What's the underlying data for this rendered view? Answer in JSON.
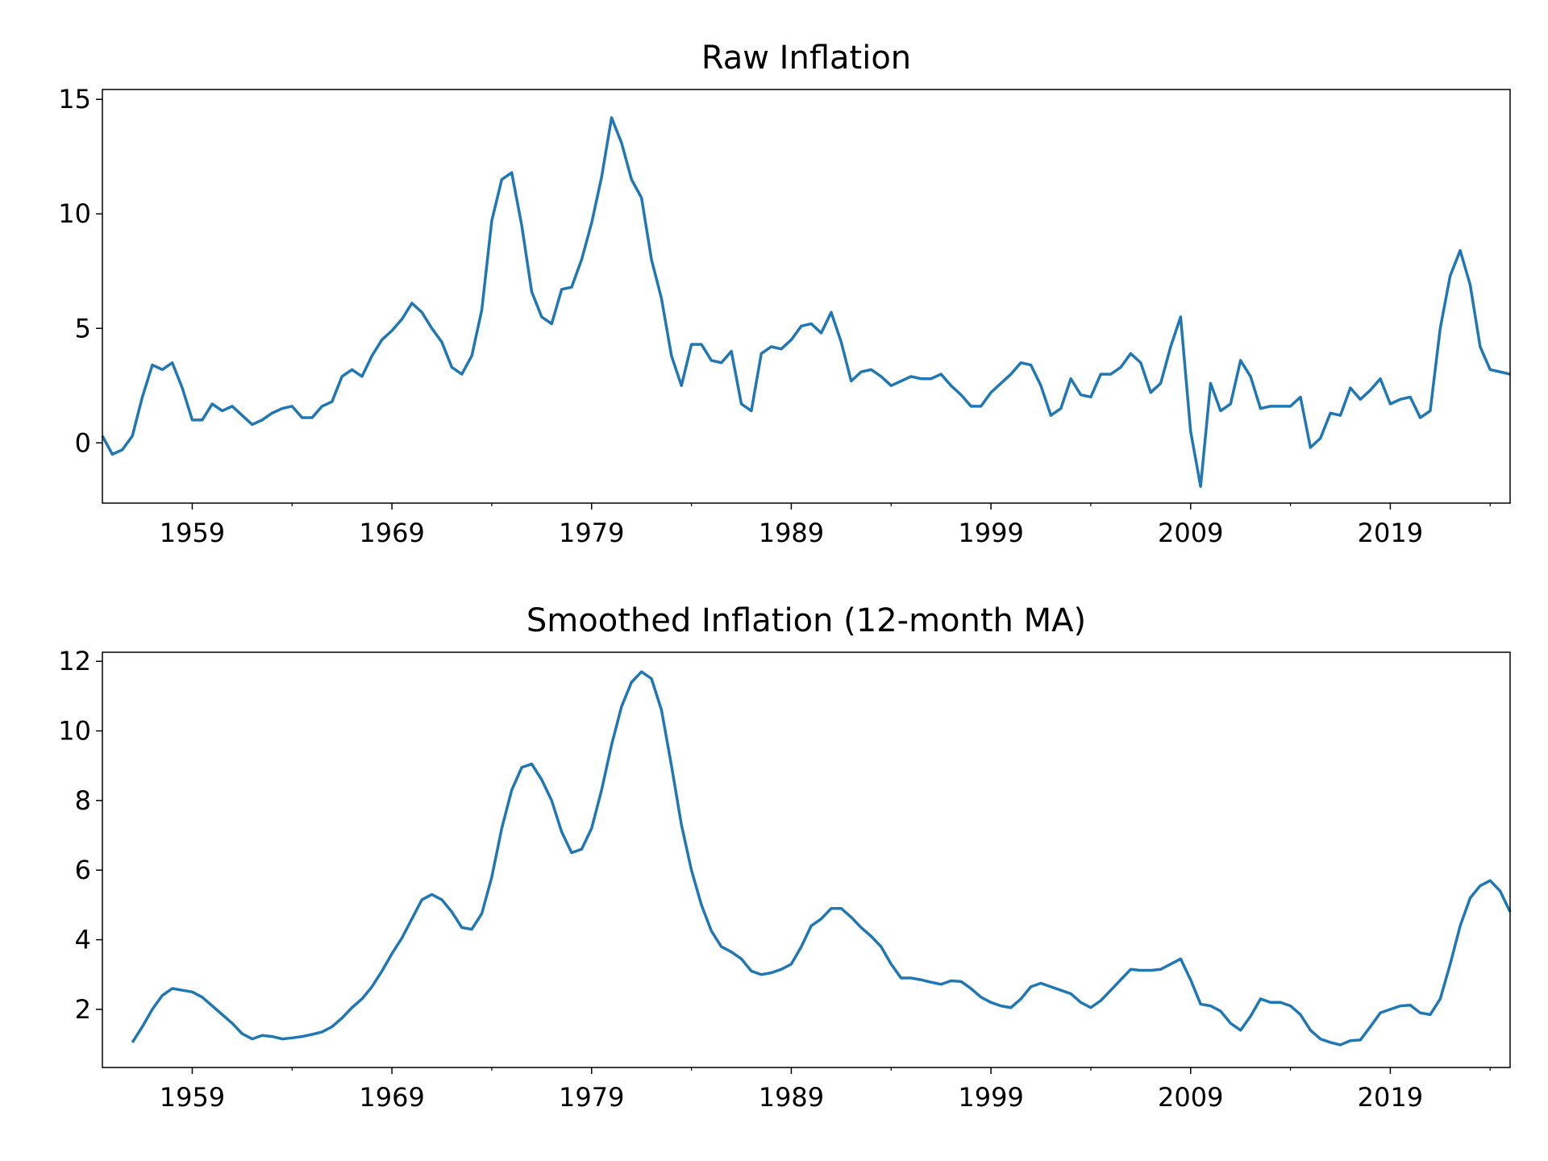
{
  "chart_data": [
    {
      "type": "line",
      "title": "Raw Inflation",
      "color": "#1f77b4",
      "xlim": [
        1954.5,
        2025
      ],
      "xticks": [
        1959,
        1969,
        1979,
        1989,
        1999,
        2009,
        2019
      ],
      "xminorticks": [
        1964,
        1974,
        1984,
        1994,
        2004,
        2014,
        2024
      ],
      "ylim": [
        -2.63,
        15.43
      ],
      "yticks": [
        0,
        5,
        10,
        15
      ],
      "x": [
        1954.5,
        1955,
        1955.5,
        1956,
        1956.5,
        1957,
        1957.5,
        1958,
        1958.5,
        1959,
        1959.5,
        1960,
        1960.5,
        1961,
        1961.5,
        1962,
        1962.5,
        1963,
        1963.5,
        1964,
        1964.5,
        1965,
        1965.5,
        1966,
        1966.5,
        1967,
        1967.5,
        1968,
        1968.5,
        1969,
        1969.5,
        1970,
        1970.5,
        1971,
        1971.5,
        1972,
        1972.5,
        1973,
        1973.5,
        1974,
        1974.5,
        1975,
        1975.5,
        1976,
        1976.5,
        1977,
        1977.5,
        1978,
        1978.5,
        1979,
        1979.5,
        1980,
        1980.5,
        1981,
        1981.5,
        1982,
        1982.5,
        1983,
        1983.5,
        1984,
        1984.5,
        1985,
        1985.5,
        1986,
        1986.5,
        1987,
        1987.5,
        1988,
        1988.5,
        1989,
        1989.5,
        1990,
        1990.5,
        1991,
        1991.5,
        1992,
        1992.5,
        1993,
        1993.5,
        1994,
        1994.5,
        1995,
        1995.5,
        1996,
        1996.5,
        1997,
        1997.5,
        1998,
        1998.5,
        1999,
        1999.5,
        2000,
        2000.5,
        2001,
        2001.5,
        2002,
        2002.5,
        2003,
        2003.5,
        2004,
        2004.5,
        2005,
        2005.5,
        2006,
        2006.5,
        2007,
        2007.5,
        2008,
        2008.5,
        2009,
        2009.5,
        2010,
        2010.5,
        2011,
        2011.5,
        2012,
        2012.5,
        2013,
        2013.5,
        2014,
        2014.5,
        2015,
        2015.5,
        2016,
        2016.5,
        2017,
        2017.5,
        2018,
        2018.5,
        2019,
        2019.5,
        2020,
        2020.5,
        2021,
        2021.5,
        2022,
        2022.5,
        2023,
        2023.5,
        2024,
        2024.5,
        2025
      ],
      "values": [
        0.3,
        -0.5,
        -0.3,
        0.3,
        2.0,
        3.4,
        3.2,
        3.5,
        2.4,
        1.0,
        1.0,
        1.7,
        1.4,
        1.6,
        1.2,
        0.8,
        1.0,
        1.3,
        1.5,
        1.6,
        1.1,
        1.1,
        1.6,
        1.8,
        2.9,
        3.2,
        2.9,
        3.8,
        4.5,
        4.9,
        5.4,
        6.1,
        5.7,
        5.0,
        4.4,
        3.3,
        3.0,
        3.8,
        5.8,
        9.7,
        11.5,
        11.8,
        9.5,
        6.6,
        5.5,
        5.2,
        6.7,
        6.8,
        8.0,
        9.6,
        11.6,
        14.2,
        13.1,
        11.5,
        10.7,
        8.0,
        6.3,
        3.8,
        2.5,
        4.3,
        4.3,
        3.6,
        3.5,
        4.0,
        1.7,
        1.4,
        3.9,
        4.2,
        4.1,
        4.5,
        5.1,
        5.2,
        4.8,
        5.7,
        4.4,
        2.7,
        3.1,
        3.2,
        2.9,
        2.5,
        2.7,
        2.9,
        2.8,
        2.8,
        3.0,
        2.5,
        2.1,
        1.6,
        1.6,
        2.2,
        2.6,
        3.0,
        3.5,
        3.4,
        2.5,
        1.2,
        1.5,
        2.8,
        2.1,
        2.0,
        3.0,
        3.0,
        3.3,
        3.9,
        3.5,
        2.2,
        2.6,
        4.2,
        5.5,
        0.5,
        -1.9,
        2.6,
        1.4,
        1.7,
        3.6,
        2.9,
        1.5,
        1.6,
        1.6,
        1.6,
        2.0,
        -0.2,
        0.2,
        1.3,
        1.2,
        2.4,
        1.9,
        2.3,
        2.8,
        1.7,
        1.9,
        2.0,
        1.1,
        1.4,
        5.0,
        7.3,
        8.4,
        6.9,
        4.2,
        3.2,
        3.1,
        3.0
      ]
    },
    {
      "type": "line",
      "title": "Smoothed Inflation (12-month MA)",
      "color": "#1f77b4",
      "xlim": [
        1954.5,
        2025
      ],
      "xticks": [
        1959,
        1969,
        1979,
        1989,
        1999,
        2009,
        2019
      ],
      "xminorticks": [
        1964,
        1974,
        1984,
        1994,
        2004,
        2014,
        2024
      ],
      "ylim": [
        0.33,
        12.26
      ],
      "yticks": [
        2,
        4,
        6,
        8,
        10,
        12
      ],
      "x": [
        1956,
        1956.5,
        1957,
        1957.5,
        1958,
        1958.5,
        1959,
        1959.5,
        1960,
        1960.5,
        1961,
        1961.5,
        1962,
        1962.5,
        1963,
        1963.5,
        1964,
        1964.5,
        1965,
        1965.5,
        1966,
        1966.5,
        1967,
        1967.5,
        1968,
        1968.5,
        1969,
        1969.5,
        1970,
        1970.5,
        1971,
        1971.5,
        1972,
        1972.5,
        1973,
        1973.5,
        1974,
        1974.5,
        1975,
        1975.5,
        1976,
        1976.5,
        1977,
        1977.5,
        1978,
        1978.5,
        1979,
        1979.5,
        1980,
        1980.5,
        1981,
        1981.5,
        1982,
        1982.5,
        1983,
        1983.5,
        1984,
        1984.5,
        1985,
        1985.5,
        1986,
        1986.5,
        1987,
        1987.5,
        1988,
        1988.5,
        1989,
        1989.5,
        1990,
        1990.5,
        1991,
        1991.5,
        1992,
        1992.5,
        1993,
        1993.5,
        1994,
        1994.5,
        1995,
        1995.5,
        1996,
        1996.5,
        1997,
        1997.5,
        1998,
        1998.5,
        1999,
        1999.5,
        2000,
        2000.5,
        2001,
        2001.5,
        2002,
        2002.5,
        2003,
        2003.5,
        2004,
        2004.5,
        2005,
        2005.5,
        2006,
        2006.5,
        2007,
        2007.5,
        2008,
        2008.5,
        2009,
        2009.5,
        2010,
        2010.5,
        2011,
        2011.5,
        2012,
        2012.5,
        2013,
        2013.5,
        2014,
        2014.5,
        2015,
        2015.5,
        2016,
        2016.5,
        2017,
        2017.5,
        2018,
        2018.5,
        2019,
        2019.5,
        2020,
        2020.5,
        2021,
        2021.5,
        2022,
        2022.5,
        2023,
        2023.5,
        2024,
        2024.5,
        2025
      ],
      "values": [
        1.05,
        1.5,
        2.0,
        2.4,
        2.6,
        2.55,
        2.5,
        2.35,
        2.1,
        1.85,
        1.6,
        1.3,
        1.15,
        1.25,
        1.22,
        1.15,
        1.18,
        1.22,
        1.28,
        1.35,
        1.5,
        1.75,
        2.05,
        2.3,
        2.65,
        3.1,
        3.6,
        4.05,
        4.6,
        5.15,
        5.3,
        5.15,
        4.8,
        4.35,
        4.3,
        4.75,
        5.8,
        7.2,
        8.3,
        8.95,
        9.05,
        8.6,
        8.0,
        7.1,
        6.5,
        6.6,
        7.2,
        8.3,
        9.6,
        10.7,
        11.4,
        11.7,
        11.5,
        10.6,
        9.0,
        7.3,
        6.0,
        5.0,
        4.25,
        3.8,
        3.65,
        3.45,
        3.1,
        3.0,
        3.05,
        3.15,
        3.3,
        3.8,
        4.4,
        4.6,
        4.9,
        4.9,
        4.65,
        4.35,
        4.1,
        3.8,
        3.3,
        2.9,
        2.9,
        2.85,
        2.78,
        2.72,
        2.82,
        2.8,
        2.6,
        2.35,
        2.2,
        2.1,
        2.05,
        2.3,
        2.65,
        2.75,
        2.65,
        2.55,
        2.45,
        2.2,
        2.05,
        2.25,
        2.55,
        2.85,
        3.15,
        3.12,
        3.12,
        3.15,
        3.3,
        3.45,
        2.85,
        2.15,
        2.1,
        1.95,
        1.6,
        1.4,
        1.8,
        2.3,
        2.2,
        2.2,
        2.1,
        1.85,
        1.4,
        1.15,
        1.05,
        0.98,
        1.1,
        1.12,
        1.5,
        1.9,
        2.0,
        2.1,
        2.12,
        1.9,
        1.85,
        2.3,
        3.3,
        4.4,
        5.2,
        5.55,
        5.7,
        5.4,
        4.8
      ]
    }
  ]
}
